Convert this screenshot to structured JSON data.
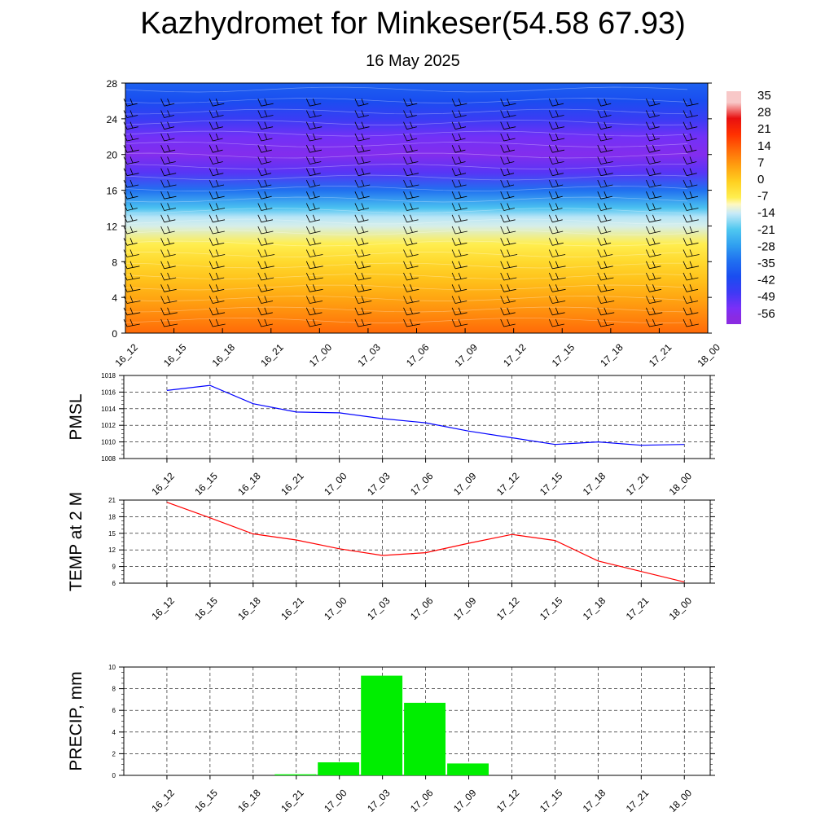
{
  "header": {
    "title": "Kazhydromet for Minkeser(54.58 67.93)",
    "subtitle": "16 May 2025"
  },
  "time_labels": [
    "16_12",
    "16_15",
    "16_18",
    "16_21",
    "17_00",
    "17_03",
    "17_06",
    "17_09",
    "17_12",
    "17_15",
    "17_18",
    "17_21",
    "18_00"
  ],
  "chart_data": [
    {
      "type": "heatmap",
      "name": "temperature-wind-cross-section",
      "x": [
        "16_12",
        "16_15",
        "16_18",
        "16_21",
        "17_00",
        "17_03",
        "17_06",
        "17_09",
        "17_12",
        "17_15",
        "17_18",
        "17_21",
        "18_00"
      ],
      "y_ticks": [
        0,
        4,
        8,
        12,
        16,
        20,
        24,
        28
      ],
      "ylim": [
        0,
        28
      ],
      "colorbar_ticks": [
        "35",
        "28",
        "21",
        "14",
        "7",
        "0",
        "-7",
        "-14",
        "-21",
        "-28",
        "-35",
        "-42",
        "-49",
        "-56"
      ],
      "temperature_profile": {
        "heights": [
          0,
          2,
          4,
          6,
          8,
          10,
          12,
          13,
          14,
          16,
          18,
          20,
          22,
          24,
          26,
          28
        ],
        "values": [
          14,
          10,
          6,
          2,
          -2,
          -7,
          -13,
          -15,
          -22,
          -35,
          -52,
          -58,
          -55,
          -48,
          -42,
          -38
        ]
      },
      "wind_barbs": true,
      "grid": false
    },
    {
      "type": "line",
      "name": "PMSL",
      "ylabel": "PMSL",
      "categories": [
        "16_12",
        "16_15",
        "16_18",
        "16_21",
        "17_00",
        "17_03",
        "17_06",
        "17_09",
        "17_12",
        "17_15",
        "17_18",
        "17_21",
        "18_00"
      ],
      "values": [
        1016.2,
        1016.8,
        1014.6,
        1013.6,
        1013.5,
        1012.8,
        1012.3,
        1011.3,
        1010.5,
        1009.7,
        1010.0,
        1009.6,
        1009.7
      ],
      "ylim": [
        1008,
        1018
      ],
      "yticks": [
        1008,
        1010,
        1012,
        1014,
        1016,
        1018
      ],
      "color": "#0000ff",
      "grid": true
    },
    {
      "type": "line",
      "name": "TEMP at 2 M",
      "ylabel": "TEMP at 2 M",
      "categories": [
        "16_12",
        "16_15",
        "16_18",
        "16_21",
        "17_00",
        "17_03",
        "17_06",
        "17_09",
        "17_12",
        "17_15",
        "17_18",
        "17_21",
        "18_00"
      ],
      "values": [
        20.6,
        17.8,
        14.9,
        13.8,
        12.2,
        11.0,
        11.5,
        13.2,
        14.8,
        13.7,
        10.0,
        8.1,
        6.2
      ],
      "ylim": [
        6,
        21
      ],
      "yticks": [
        6,
        9,
        12,
        15,
        18,
        21
      ],
      "color": "#ff0000",
      "grid": true
    },
    {
      "type": "bar",
      "name": "PRECIP, mm",
      "ylabel": "PRECIP, mm",
      "categories": [
        "16_12",
        "16_15",
        "16_18",
        "16_21",
        "17_00",
        "17_03",
        "17_06",
        "17_09",
        "17_12",
        "17_15",
        "17_18",
        "17_21",
        "18_00"
      ],
      "values": [
        0,
        0,
        0,
        0.1,
        1.2,
        9.2,
        6.7,
        1.1,
        0,
        0,
        0,
        0,
        0
      ],
      "ylim": [
        0,
        10
      ],
      "yticks": [
        0,
        2,
        4,
        6,
        8,
        10
      ],
      "color": "#00ee00",
      "grid": true
    }
  ]
}
